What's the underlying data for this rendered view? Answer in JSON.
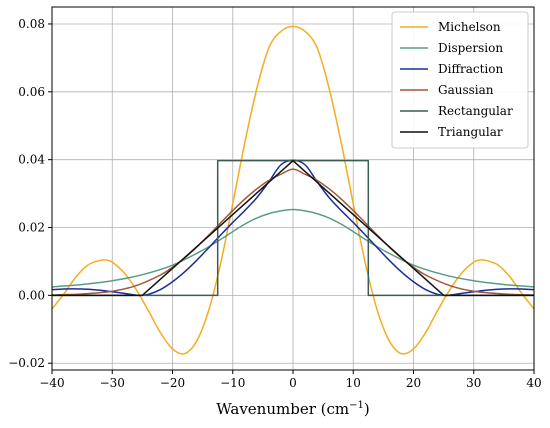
{
  "chart_data": {
    "type": "line",
    "title": "",
    "xlabel": "Wavenumber (cm",
    "xlabel_sup": "−1",
    "xlabel_close": ")",
    "ylabel": "",
    "xlim": [
      -40,
      40
    ],
    "ylim": [
      -0.022,
      0.085
    ],
    "xticks": [
      -40,
      -30,
      -20,
      -10,
      0,
      10,
      20,
      30,
      40
    ],
    "xtick_labels": [
      "−40",
      "−30",
      "−20",
      "−10",
      "0",
      "10",
      "20",
      "30",
      "40"
    ],
    "yticks": [
      -0.02,
      0.0,
      0.02,
      0.04,
      0.06,
      0.08
    ],
    "ytick_labels": [
      "−0.02",
      "0.00",
      "0.02",
      "0.04",
      "0.06",
      "0.08"
    ],
    "grid": true,
    "legend_position": "top-right",
    "series": [
      {
        "name": "Michelson",
        "color": "#f5ac1e",
        "x": [
          -40,
          -38,
          -36,
          -34,
          -32,
          -31,
          -30,
          -28,
          -26,
          -24,
          -22,
          -20,
          -18,
          -16,
          -14,
          -12,
          -10,
          -8,
          -6,
          -4,
          -2,
          0,
          2,
          4,
          6,
          8,
          10,
          12,
          14,
          16,
          18,
          20,
          22,
          24,
          26,
          28,
          30,
          31,
          32,
          34,
          36,
          38,
          40
        ],
        "y": [
          -0.004,
          0.0005,
          0.0055,
          0.009,
          0.0103,
          0.0104,
          0.0098,
          0.0066,
          0.0016,
          -0.0045,
          -0.011,
          -0.0158,
          -0.0172,
          -0.0135,
          -0.0045,
          0.0095,
          0.027,
          0.045,
          0.061,
          0.073,
          0.0778,
          0.0793,
          0.0778,
          0.073,
          0.061,
          0.045,
          0.027,
          0.0095,
          -0.0045,
          -0.0135,
          -0.0172,
          -0.0158,
          -0.011,
          -0.0045,
          0.0016,
          0.0066,
          0.0098,
          0.0104,
          0.0103,
          0.009,
          0.0055,
          0.0005,
          -0.004
        ]
      },
      {
        "name": "Dispersion",
        "color": "#5a9c8c",
        "x": [
          -40,
          -35,
          -30,
          -25,
          -20,
          -15,
          -12,
          -10,
          -8,
          -6,
          -4,
          -2,
          0,
          2,
          4,
          6,
          8,
          10,
          12,
          15,
          20,
          25,
          30,
          35,
          40
        ],
        "y": [
          0.0025,
          0.0032,
          0.0043,
          0.0061,
          0.0089,
          0.0133,
          0.0165,
          0.0188,
          0.021,
          0.0228,
          0.0241,
          0.0249,
          0.0253,
          0.0249,
          0.0241,
          0.0228,
          0.021,
          0.0188,
          0.0165,
          0.0133,
          0.0089,
          0.0061,
          0.0043,
          0.0032,
          0.0025
        ]
      },
      {
        "name": "Diffraction",
        "color": "#1a2e9c",
        "x": [
          -40,
          -37,
          -34,
          -31,
          -28,
          -25.6,
          -24,
          -22,
          -20,
          -18,
          -16,
          -14,
          -12,
          -10,
          -8,
          -6,
          -4,
          -2,
          0,
          2,
          4,
          6,
          8,
          10,
          12,
          14,
          16,
          18,
          20,
          22,
          24,
          25.6,
          28,
          31,
          34,
          37,
          40
        ],
        "y": [
          0.0017,
          0.0019,
          0.0018,
          0.0013,
          0.0006,
          0.0,
          0.0003,
          0.0017,
          0.004,
          0.0069,
          0.0103,
          0.014,
          0.0178,
          0.0215,
          0.025,
          0.0288,
          0.0335,
          0.0385,
          0.0398,
          0.0385,
          0.0335,
          0.0288,
          0.025,
          0.0215,
          0.0178,
          0.014,
          0.0103,
          0.0069,
          0.004,
          0.0017,
          0.0003,
          0.0,
          0.0006,
          0.0013,
          0.0018,
          0.0019,
          0.0017
        ]
      },
      {
        "name": "Gaussian",
        "color": "#a0573a",
        "x": [
          -40,
          -35,
          -30,
          -26,
          -22,
          -20,
          -18,
          -16,
          -14,
          -12,
          -10,
          -8,
          -6,
          -4,
          -2,
          0,
          2,
          4,
          6,
          8,
          10,
          12,
          14,
          16,
          18,
          20,
          22,
          26,
          30,
          35,
          40
        ],
        "y": [
          0.0001,
          0.0004,
          0.0012,
          0.0029,
          0.006,
          0.0083,
          0.011,
          0.0142,
          0.0177,
          0.0214,
          0.025,
          0.0284,
          0.0314,
          0.0339,
          0.0357,
          0.0372,
          0.0357,
          0.0339,
          0.0314,
          0.0284,
          0.025,
          0.0214,
          0.0177,
          0.0142,
          0.011,
          0.0083,
          0.006,
          0.0029,
          0.0012,
          0.0004,
          0.0001
        ]
      },
      {
        "name": "Rectangular",
        "color": "#3d5c4f",
        "x": [
          -40,
          -12.5,
          -12.5,
          12.5,
          12.5,
          40
        ],
        "y": [
          0.0,
          0.0,
          0.0397,
          0.0397,
          0.0,
          0.0
        ]
      },
      {
        "name": "Triangular",
        "color": "#111111",
        "x": [
          -40,
          -25,
          0,
          25,
          40
        ],
        "y": [
          0.0,
          0.0,
          0.0397,
          0.0,
          0.0
        ]
      }
    ]
  }
}
